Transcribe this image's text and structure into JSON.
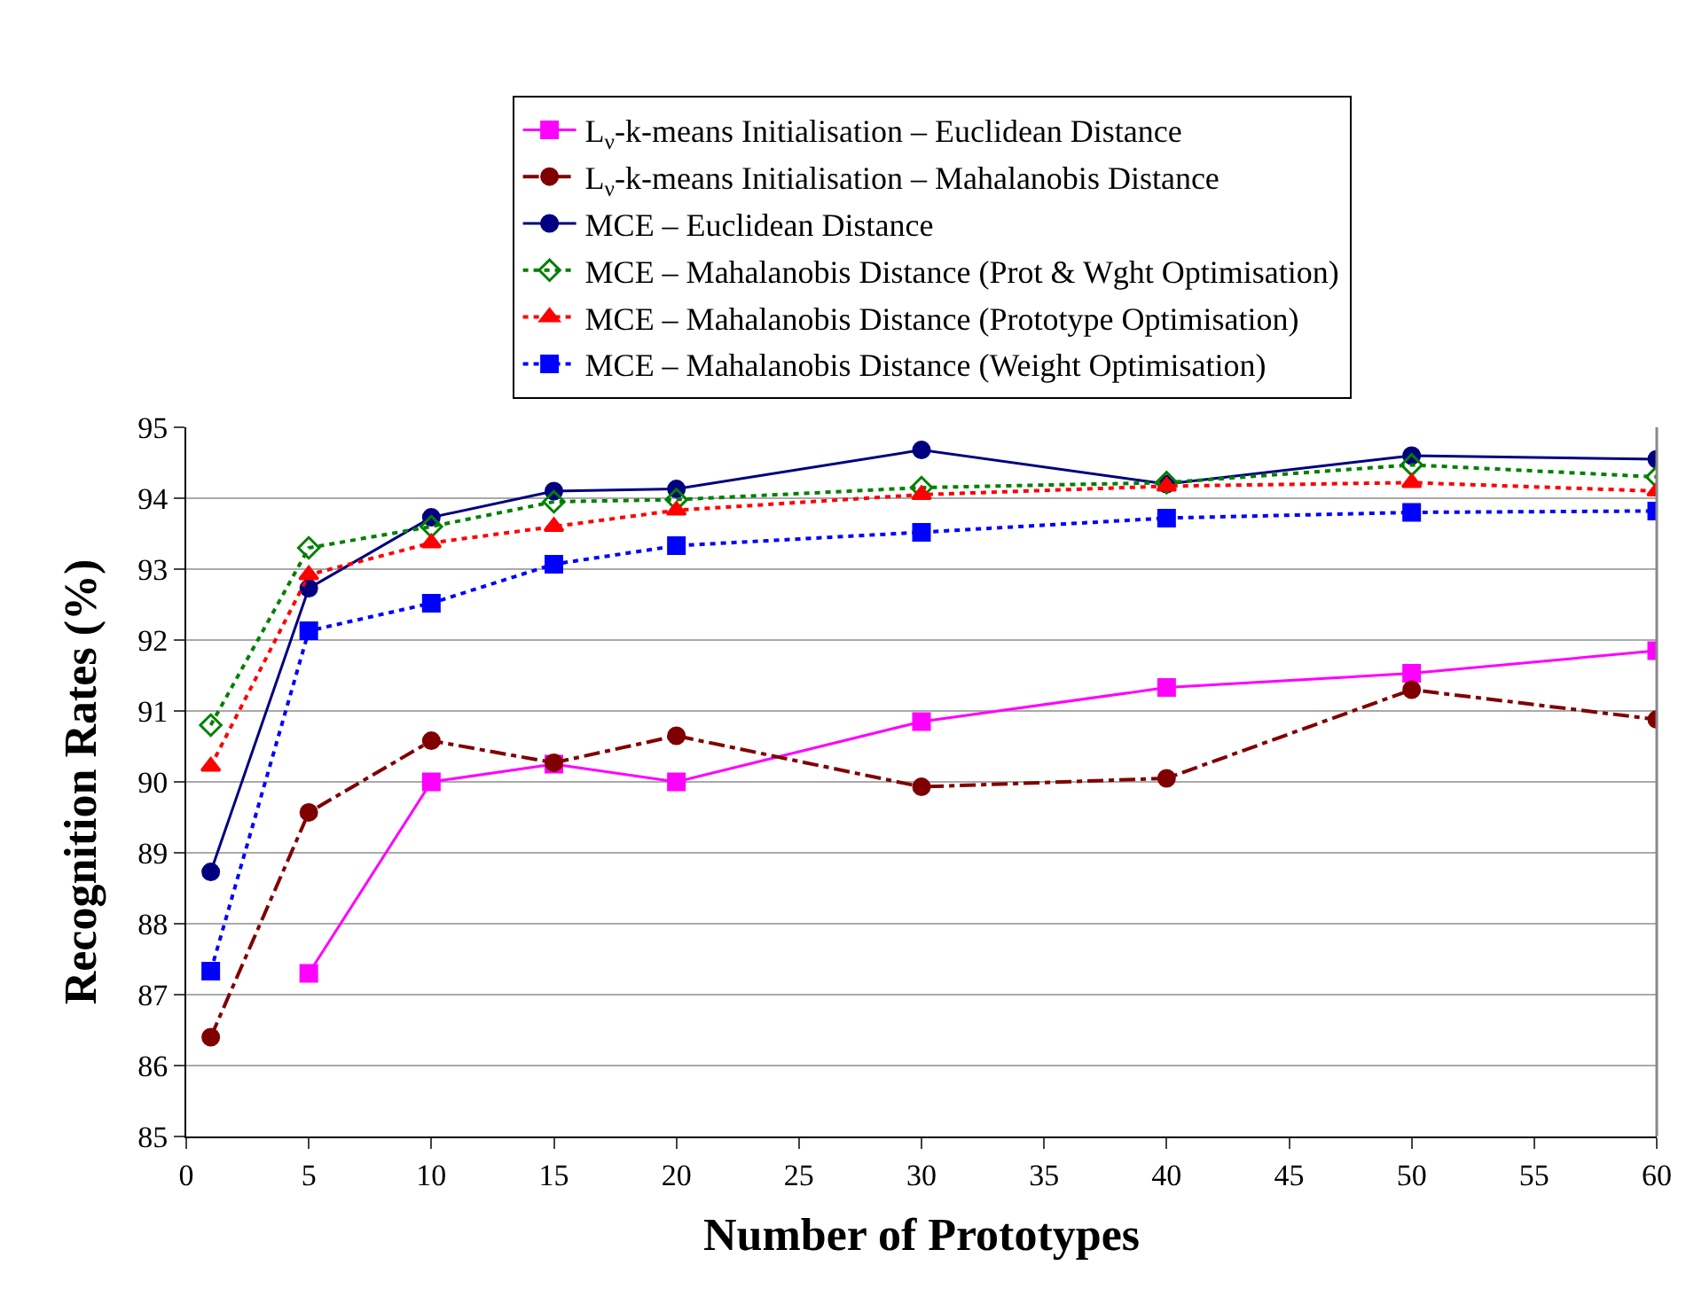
{
  "chart_data": {
    "type": "line",
    "xlabel": "Number of Prototypes",
    "ylabel": "Recognition Rates (%)",
    "x": [
      1,
      5,
      10,
      15,
      20,
      30,
      40,
      50,
      60
    ],
    "xlim": [
      0,
      60
    ],
    "xticks": [
      0,
      5,
      10,
      15,
      20,
      25,
      30,
      35,
      40,
      45,
      50,
      55,
      60
    ],
    "ylim": [
      85,
      95
    ],
    "yticks": [
      85,
      86,
      87,
      88,
      89,
      90,
      91,
      92,
      93,
      94,
      95
    ],
    "grid": "y",
    "legend": "top",
    "series": [
      {
        "name": "L$_{ν}$-k-means Initialisation – Euclidean Distance",
        "color": "#ff00ff",
        "marker": "square",
        "line_style": "solid",
        "values": [
          null,
          87.3,
          90.0,
          90.25,
          90.0,
          90.85,
          91.33,
          91.53,
          91.85
        ]
      },
      {
        "name": "L$_{ν}$-k-means Initialisation – Mahalanobis Distance",
        "color": "#800000",
        "marker": "circle",
        "line_style": "dashdot",
        "values": [
          86.4,
          89.57,
          90.58,
          90.27,
          90.65,
          89.93,
          90.05,
          91.3,
          90.88
        ]
      },
      {
        "name": "MCE – Euclidean Distance",
        "color": "#000080",
        "marker": "circle",
        "line_style": "solid",
        "values": [
          88.73,
          92.73,
          93.73,
          94.1,
          94.13,
          94.68,
          94.2,
          94.6,
          94.55
        ]
      },
      {
        "name": "MCE – Mahalanobis Distance (Prot & Wght Optimisation)",
        "color": "#008000",
        "marker": "diamond",
        "line_style": "dotted",
        "values": [
          90.8,
          93.3,
          93.6,
          93.95,
          93.98,
          94.15,
          94.22,
          94.47,
          94.3
        ]
      },
      {
        "name": "MCE – Mahalanobis Distance (Prototype Optimisation)",
        "color": "#ff0000",
        "marker": "triangle",
        "line_style": "dotted",
        "values": [
          90.22,
          92.92,
          93.37,
          93.6,
          93.83,
          94.05,
          94.17,
          94.22,
          94.1
        ]
      },
      {
        "name": "MCE – Mahalanobis Distance (Weight Optimisation)",
        "color": "#0000ff",
        "marker": "square",
        "line_style": "dotted",
        "values": [
          87.33,
          92.13,
          92.52,
          93.07,
          93.33,
          93.52,
          93.72,
          93.8,
          93.82
        ]
      }
    ]
  }
}
